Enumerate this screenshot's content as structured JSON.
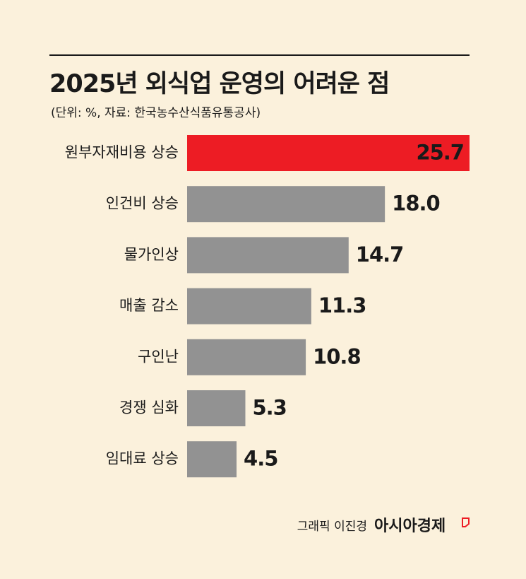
{
  "chart_data": {
    "type": "hbar",
    "title": "2025년 외식업 운영의 어려운 점",
    "subtitle": "(단위: %, 자료: 한국농수산식품유통공사)",
    "categories": [
      "원부자재비용 상승",
      "인건비 상승",
      "물가인상",
      "매출 감소",
      "구인난",
      "경쟁 심화",
      "임대료 상승"
    ],
    "values": [
      25.7,
      18.0,
      14.7,
      11.3,
      10.8,
      5.3,
      4.5
    ],
    "value_labels": [
      "25.7",
      "18.0",
      "14.7",
      "11.3",
      "10.8",
      "5.3",
      "4.5"
    ],
    "colors": [
      "#ed1c24",
      "#929292",
      "#929292",
      "#929292",
      "#929292",
      "#929292",
      "#929292"
    ]
  },
  "footer": {
    "credit": "그래픽 이진경",
    "publisher": "아시아경제"
  }
}
